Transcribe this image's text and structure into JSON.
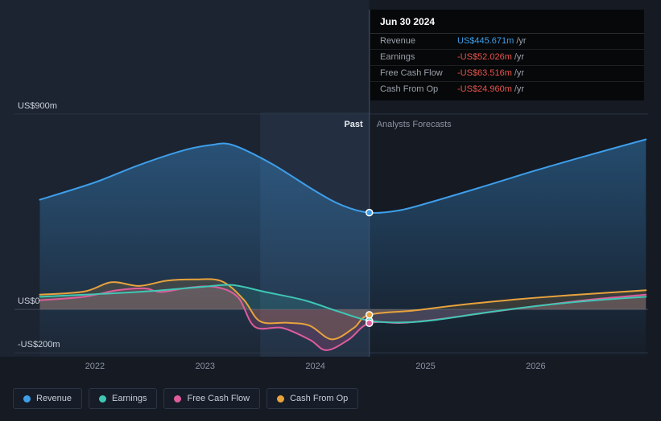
{
  "page": {
    "bg": "#151a23",
    "past_bg": "#1c2431",
    "hover_band_color": "rgba(100,150,210,0.10)",
    "grid_color": "#2b3443",
    "zero_line_color": "#3f4856",
    "divider_color": "#44516b"
  },
  "tooltip": {
    "date": "Jun 30 2024",
    "rows": [
      {
        "label": "Revenue",
        "value": "US$445.671m",
        "suffix": "/yr",
        "color": "#3e9eea"
      },
      {
        "label": "Earnings",
        "value": "-US$52.026m",
        "suffix": "/yr",
        "color": "#e9544d"
      },
      {
        "label": "Free Cash Flow",
        "value": "-US$63.516m",
        "suffix": "/yr",
        "color": "#e9544d"
      },
      {
        "label": "Cash From Op",
        "value": "-US$24.960m",
        "suffix": "/yr",
        "color": "#e9544d"
      }
    ]
  },
  "legend": {
    "items": [
      {
        "label": "Revenue",
        "color": "#3e9eea"
      },
      {
        "label": "Earnings",
        "color": "#3fc7b4"
      },
      {
        "label": "Free Cash Flow",
        "color": "#e05c9c"
      },
      {
        "label": "Cash From Op",
        "color": "#e8a33d"
      }
    ]
  },
  "chart_data": {
    "type": "line",
    "title": "",
    "x_domain": [
      2021.27,
      2027.02
    ],
    "y_domain": [
      -218,
      907
    ],
    "divider_x": 2024.49,
    "hover_band": [
      2023.5,
      2024.49
    ],
    "past_label": "Past",
    "forecast_label": "Analysts Forecasts",
    "y_gridlines": [
      {
        "value": 900,
        "label": "US$900m"
      },
      {
        "value": 0,
        "label": "US$0"
      },
      {
        "value": -200,
        "label": "-US$200m"
      }
    ],
    "x_ticks": [
      {
        "value": 2022,
        "label": "2022"
      },
      {
        "value": 2023,
        "label": "2023"
      },
      {
        "value": 2024,
        "label": "2024"
      },
      {
        "value": 2025,
        "label": "2025"
      },
      {
        "value": 2026,
        "label": "2026"
      }
    ],
    "series": [
      {
        "name": "Revenue",
        "color": "#3e9eea",
        "fill_to": "bottom",
        "marker": true,
        "points": [
          [
            2021.5,
            505
          ],
          [
            2022,
            585
          ],
          [
            2022.4,
            665
          ],
          [
            2022.8,
            732
          ],
          [
            2023.05,
            757
          ],
          [
            2023.25,
            757
          ],
          [
            2023.6,
            672
          ],
          [
            2024,
            545
          ],
          [
            2024.25,
            478
          ],
          [
            2024.49,
            445.671
          ],
          [
            2024.75,
            455
          ],
          [
            2025,
            487
          ],
          [
            2025.5,
            562
          ],
          [
            2026,
            640
          ],
          [
            2026.5,
            713
          ],
          [
            2027,
            783
          ]
        ]
      },
      {
        "name": "Earnings",
        "color": "#3fc7b4",
        "fill_to": "zero",
        "marker": true,
        "points": [
          [
            2021.5,
            58
          ],
          [
            2022,
            70
          ],
          [
            2022.5,
            84
          ],
          [
            2023,
            105
          ],
          [
            2023.25,
            112
          ],
          [
            2023.55,
            80
          ],
          [
            2023.9,
            42
          ],
          [
            2024.2,
            -8
          ],
          [
            2024.49,
            -52.026
          ],
          [
            2024.8,
            -60
          ],
          [
            2025.1,
            -48
          ],
          [
            2025.5,
            -18
          ],
          [
            2026,
            15
          ],
          [
            2026.5,
            40
          ],
          [
            2027,
            58
          ]
        ]
      },
      {
        "name": "Free Cash Flow",
        "color": "#e05c9c",
        "fill_to": "zero",
        "marker": true,
        "points": [
          [
            2021.5,
            42
          ],
          [
            2021.9,
            58
          ],
          [
            2022.2,
            88
          ],
          [
            2022.45,
            97
          ],
          [
            2022.6,
            80
          ],
          [
            2022.85,
            100
          ],
          [
            2023.1,
            103
          ],
          [
            2023.3,
            55
          ],
          [
            2023.45,
            -80
          ],
          [
            2023.7,
            -85
          ],
          [
            2023.95,
            -140
          ],
          [
            2024.1,
            -188
          ],
          [
            2024.3,
            -140
          ],
          [
            2024.49,
            -63.516
          ],
          [
            2024.8,
            -62
          ],
          [
            2025.2,
            -40
          ],
          [
            2025.6,
            -12
          ],
          [
            2026,
            15
          ],
          [
            2026.5,
            45
          ],
          [
            2027,
            68
          ]
        ]
      },
      {
        "name": "Cash From Op",
        "color": "#e8a33d",
        "fill_to": "zero",
        "marker": true,
        "points": [
          [
            2021.5,
            68
          ],
          [
            2021.9,
            82
          ],
          [
            2022.15,
            125
          ],
          [
            2022.4,
            108
          ],
          [
            2022.65,
            132
          ],
          [
            2022.9,
            138
          ],
          [
            2023.15,
            130
          ],
          [
            2023.35,
            45
          ],
          [
            2023.5,
            -55
          ],
          [
            2023.75,
            -62
          ],
          [
            2023.95,
            -75
          ],
          [
            2024.15,
            -138
          ],
          [
            2024.35,
            -85
          ],
          [
            2024.49,
            -24.96
          ],
          [
            2024.9,
            -5
          ],
          [
            2025.3,
            20
          ],
          [
            2025.8,
            45
          ],
          [
            2026.3,
            65
          ],
          [
            2027,
            88
          ]
        ]
      }
    ]
  }
}
